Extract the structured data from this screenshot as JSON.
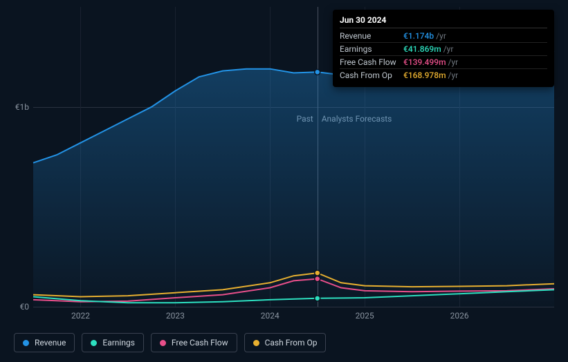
{
  "chart": {
    "type": "area-line",
    "background": "#0a1420",
    "yaxis": {
      "labels": [
        "€1b",
        "€0"
      ],
      "values_billion": [
        1.0,
        0.0
      ],
      "gridline_color": "#2a3240",
      "label_color": "#8a94a0",
      "fontsize": 12
    },
    "xaxis": {
      "labels": [
        "2022",
        "2023",
        "2024",
        "2025",
        "2026"
      ],
      "gridline_color": "#1a2230",
      "label_color": "#8a94a0",
      "fontsize": 12
    },
    "divider": {
      "label_past": "Past",
      "label_forecast": "Analysts Forecasts",
      "color": "#4a5260",
      "label_color": "#8a94a0"
    },
    "tooltip": {
      "date": "Jun 30 2024",
      "rows": [
        {
          "label": "Revenue",
          "value": "€1.174b",
          "unit": "/yr",
          "color": "#2393e6"
        },
        {
          "label": "Earnings",
          "value": "€41.869m",
          "unit": "/yr",
          "color": "#2de0c0"
        },
        {
          "label": "Free Cash Flow",
          "value": "€139.499m",
          "unit": "/yr",
          "color": "#e84f8a"
        },
        {
          "label": "Cash From Op",
          "value": "€168.978m",
          "unit": "/yr",
          "color": "#e8b030"
        }
      ],
      "background": "#000000",
      "date_color": "#ffffff"
    },
    "legend": [
      {
        "label": "Revenue",
        "color": "#2393e6"
      },
      {
        "label": "Earnings",
        "color": "#2de0c0"
      },
      {
        "label": "Free Cash Flow",
        "color": "#e84f8a"
      },
      {
        "label": "Cash From Op",
        "color": "#e8b030"
      }
    ],
    "series": {
      "xdomain": [
        2021.5,
        2027.0
      ],
      "ydomain_billion": [
        0.0,
        1.5
      ],
      "revenue": {
        "color": "#2393e6",
        "fill_gradient": [
          "rgba(35,147,230,0.35)",
          "rgba(35,147,230,0.02)"
        ],
        "line_width": 2,
        "points": [
          [
            2021.5,
            0.72
          ],
          [
            2021.75,
            0.76
          ],
          [
            2022.0,
            0.82
          ],
          [
            2022.25,
            0.88
          ],
          [
            2022.5,
            0.94
          ],
          [
            2022.75,
            1.0
          ],
          [
            2023.0,
            1.08
          ],
          [
            2023.25,
            1.15
          ],
          [
            2023.5,
            1.18
          ],
          [
            2023.75,
            1.19
          ],
          [
            2024.0,
            1.19
          ],
          [
            2024.25,
            1.17
          ],
          [
            2024.5,
            1.174
          ],
          [
            2024.75,
            1.16
          ],
          [
            2025.0,
            1.16
          ],
          [
            2025.5,
            1.18
          ],
          [
            2026.0,
            1.22
          ],
          [
            2026.5,
            1.25
          ],
          [
            2027.0,
            1.28
          ]
        ]
      },
      "earnings": {
        "color": "#2de0c0",
        "line_width": 2,
        "points": [
          [
            2021.5,
            0.05
          ],
          [
            2022.0,
            0.03
          ],
          [
            2022.5,
            0.02
          ],
          [
            2023.0,
            0.02
          ],
          [
            2023.5,
            0.025
          ],
          [
            2024.0,
            0.035
          ],
          [
            2024.5,
            0.042
          ],
          [
            2025.0,
            0.045
          ],
          [
            2025.5,
            0.055
          ],
          [
            2026.0,
            0.065
          ],
          [
            2026.5,
            0.075
          ],
          [
            2027.0,
            0.085
          ]
        ]
      },
      "free_cash_flow": {
        "color": "#e84f8a",
        "line_width": 2,
        "points": [
          [
            2021.5,
            0.035
          ],
          [
            2022.0,
            0.025
          ],
          [
            2022.5,
            0.028
          ],
          [
            2023.0,
            0.045
          ],
          [
            2023.5,
            0.06
          ],
          [
            2024.0,
            0.095
          ],
          [
            2024.25,
            0.13
          ],
          [
            2024.5,
            0.1395
          ],
          [
            2024.75,
            0.095
          ],
          [
            2025.0,
            0.08
          ],
          [
            2025.5,
            0.075
          ],
          [
            2026.0,
            0.078
          ],
          [
            2026.5,
            0.08
          ],
          [
            2027.0,
            0.09
          ]
        ]
      },
      "cash_from_op": {
        "color": "#e8b030",
        "line_width": 2,
        "points": [
          [
            2021.5,
            0.06
          ],
          [
            2022.0,
            0.05
          ],
          [
            2022.5,
            0.055
          ],
          [
            2023.0,
            0.07
          ],
          [
            2023.5,
            0.085
          ],
          [
            2024.0,
            0.12
          ],
          [
            2024.25,
            0.155
          ],
          [
            2024.5,
            0.169
          ],
          [
            2024.75,
            0.12
          ],
          [
            2025.0,
            0.105
          ],
          [
            2025.5,
            0.1
          ],
          [
            2026.0,
            0.102
          ],
          [
            2026.5,
            0.105
          ],
          [
            2027.0,
            0.115
          ]
        ]
      },
      "markers_x": 2024.5,
      "marker_radius": 4
    }
  }
}
